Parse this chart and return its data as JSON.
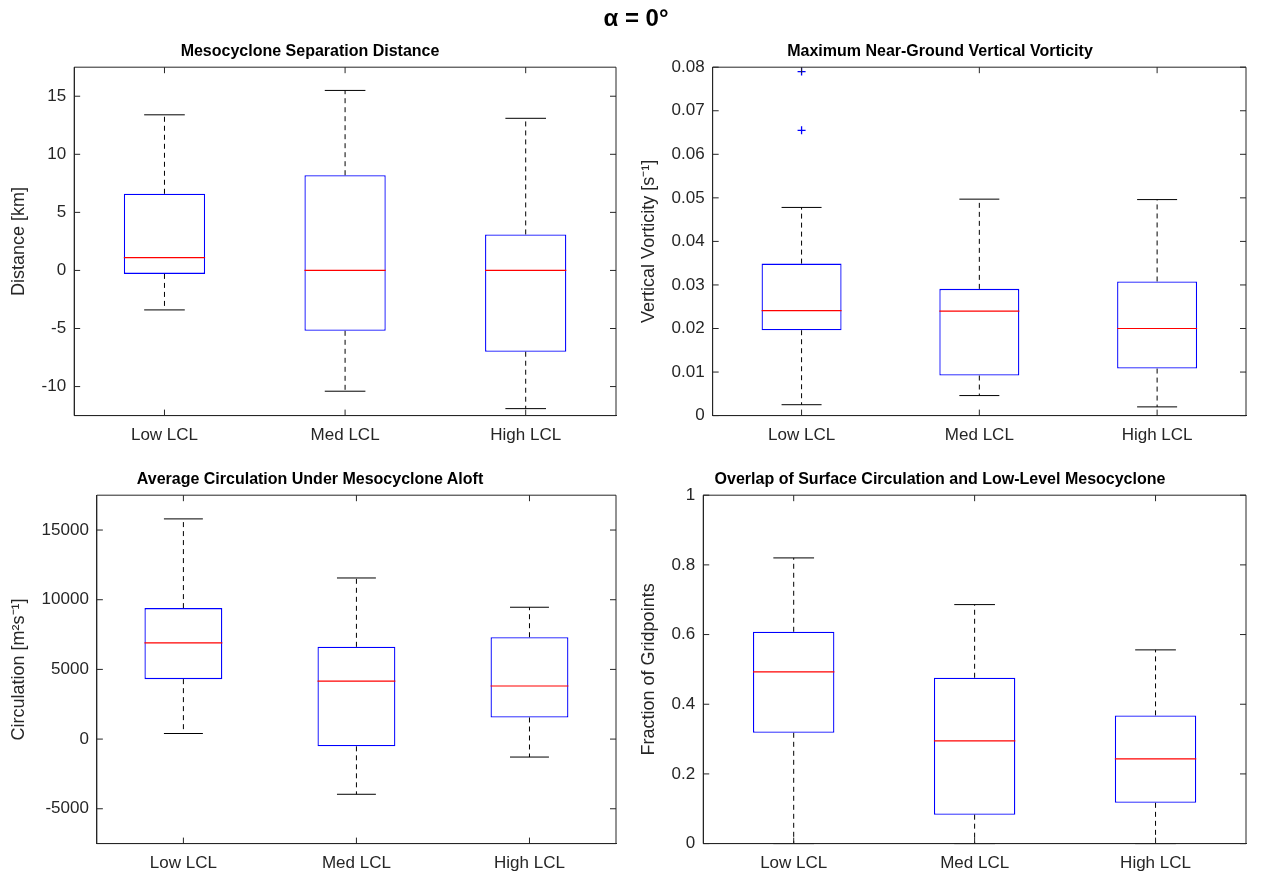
{
  "chart_data": [
    {
      "type": "other",
      "title": "α = 0°"
    },
    {
      "type": "box",
      "title": "Mesocyclone Separation Distance",
      "ylabel": "Distance [km]",
      "categories": [
        "Low LCL",
        "Med LCL",
        "High LCL"
      ],
      "ylim": [
        -12.5,
        17.5
      ],
      "yticks": [
        -10,
        -5,
        0,
        5,
        10,
        15
      ],
      "marker": "cross",
      "series": [
        {
          "color": "#0000ff",
          "boxes": [
            {
              "low": -3.4,
              "q1": -0.3,
              "median": 1.1,
              "q3": 6.6,
              "high": 13.4
            },
            {
              "low": -10.4,
              "q1": -5.2,
              "median": 0,
              "q3": 8.2,
              "high": 15.5
            },
            {
              "low": -11.9,
              "q1": -7.0,
              "median": 0,
              "q3": 3.1,
              "high": 13.1
            }
          ]
        }
      ]
    },
    {
      "type": "box",
      "title": "Maximum Near-Ground Vertical Vorticity",
      "ylabel": "Vertical Vorticity [s⁻¹]",
      "categories": [
        "Low LCL",
        "Med LCL",
        "High LCL"
      ],
      "ylim": [
        0,
        0.08
      ],
      "yticks": [
        0,
        0.01,
        0.02,
        0.03,
        0.04,
        0.05,
        0.06,
        0.07,
        0.08
      ],
      "marker": "cross",
      "series": [
        {
          "color": "#0000ff",
          "boxes": [
            {
              "low": 0.0025,
              "q1": 0.0196,
              "median": 0.0241,
              "q3": 0.0349,
              "high": 0.0478,
              "outliers": [
                0.079,
                0.0655
              ]
            },
            {
              "low": 0.0046,
              "q1": 0.0092,
              "median": 0.024,
              "q3": 0.0291,
              "high": 0.0497
            },
            {
              "low": 0.002,
              "q1": 0.0108,
              "median": 0.02,
              "q3": 0.0308,
              "high": 0.0496
            }
          ]
        }
      ]
    },
    {
      "type": "box",
      "title": "Average Circulation Under Mesocyclone Aloft",
      "ylabel": "Circulation [m²s⁻¹]",
      "categories": [
        "Low LCL",
        "Med LCL",
        "High LCL"
      ],
      "ylim": [
        -7500,
        17500
      ],
      "yticks": [
        -5000,
        0,
        5000,
        10000,
        15000
      ],
      "marker": "cross",
      "series": [
        {
          "color": "#0000ff",
          "boxes": [
            {
              "low": 400,
              "q1": 4300,
              "median": 6900,
              "q3": 9400,
              "high": 15800
            },
            {
              "low": -3960,
              "q1": -520,
              "median": 4160,
              "q3": 6620,
              "high": 11560
            },
            {
              "low": -1290,
              "q1": 1550,
              "median": 3810,
              "q3": 7310,
              "high": 9460
            }
          ]
        }
      ]
    },
    {
      "type": "box",
      "title": "Overlap of Surface Circulation and Low-Level Mesocyclone",
      "ylabel": "Fraction of Gridpoints",
      "categories": [
        "Low LCL",
        "Med LCL",
        "High LCL"
      ],
      "ylim": [
        0,
        1
      ],
      "yticks": [
        0,
        0.2,
        0.4,
        0.6,
        0.8,
        1
      ],
      "marker": "cross",
      "series": [
        {
          "color": "#0000ff",
          "boxes": [
            {
              "low": 0,
              "q1": 0.318,
              "median": 0.493,
              "q3": 0.608,
              "high": 0.82
            },
            {
              "low": 0,
              "q1": 0.083,
              "median": 0.295,
              "q3": 0.476,
              "high": 0.686
            },
            {
              "low": 0,
              "q1": 0.117,
              "median": 0.243,
              "q3": 0.368,
              "high": 0.556
            }
          ]
        }
      ]
    }
  ]
}
